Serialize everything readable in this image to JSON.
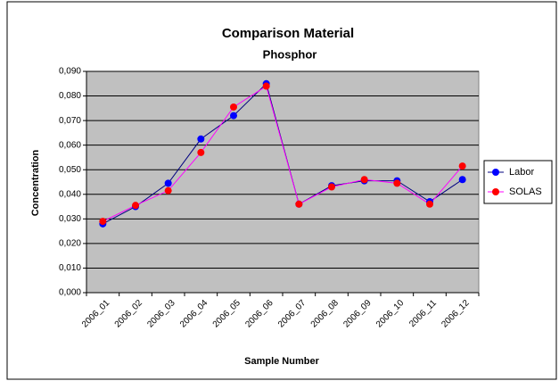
{
  "chart_data": {
    "type": "line",
    "title": "Comparison Material",
    "subtitle": "Phosphor",
    "x_label": "Sample Number",
    "y_label": "Concentration",
    "categories": [
      "2006_01",
      "2006_02",
      "2006_03",
      "2006_04",
      "2006_05",
      "2006_06",
      "2006_07",
      "2006_08",
      "2006_09",
      "2006_10",
      "2006_11",
      "2006_12"
    ],
    "series": [
      {
        "name": "Labor",
        "color": "#0000ff",
        "line_color": "#000080",
        "values": [
          0.028,
          0.035,
          0.0445,
          0.0625,
          0.072,
          0.085,
          0.036,
          0.0435,
          0.0455,
          0.0455,
          0.037,
          0.046
        ]
      },
      {
        "name": "SOLAS",
        "color": "#ff0000",
        "line_color": "#ff00ff",
        "values": [
          0.029,
          0.0355,
          0.0415,
          0.057,
          0.0755,
          0.084,
          0.036,
          0.043,
          0.046,
          0.0445,
          0.036,
          0.0515
        ]
      }
    ],
    "ylim": [
      0,
      0.09
    ],
    "yticks": [
      {
        "value": 0,
        "label": "0,000"
      },
      {
        "value": 0.01,
        "label": "0,010"
      },
      {
        "value": 0.02,
        "label": "0,020"
      },
      {
        "value": 0.03,
        "label": "0,030"
      },
      {
        "value": 0.04,
        "label": "0,040"
      },
      {
        "value": 0.05,
        "label": "0,050"
      },
      {
        "value": 0.06,
        "label": "0,060"
      },
      {
        "value": 0.07,
        "label": "0,070"
      },
      {
        "value": 0.08,
        "label": "0,080"
      },
      {
        "value": 0.09,
        "label": "0,090"
      }
    ],
    "grid": true,
    "plot_background": "#c0c0c0",
    "legend": "right"
  }
}
